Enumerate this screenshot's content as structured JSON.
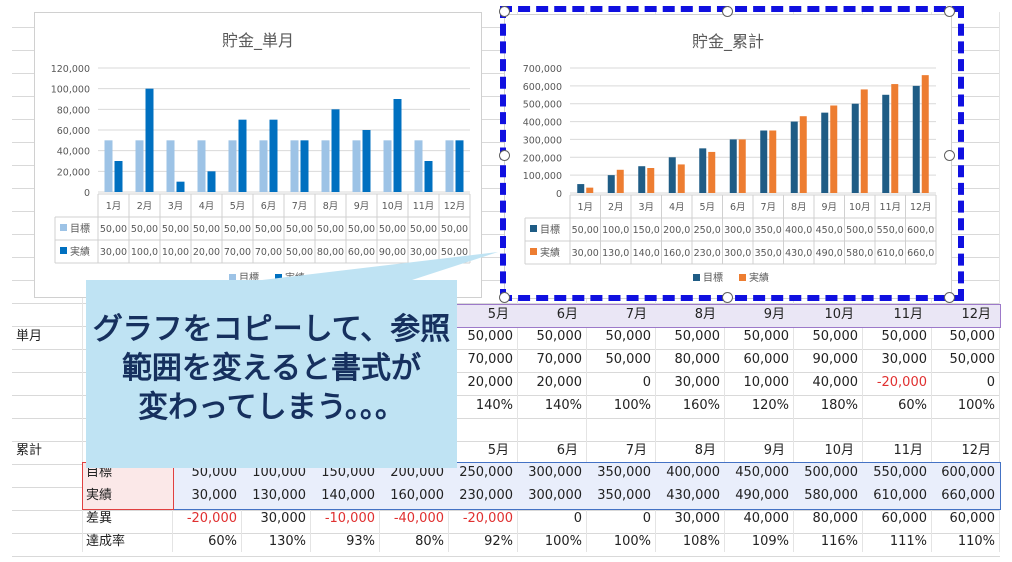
{
  "months": [
    "1月",
    "2月",
    "3月",
    "4月",
    "5月",
    "6月",
    "7月",
    "8月",
    "9月",
    "10月",
    "11月",
    "12月"
  ],
  "sheet": {
    "section_single": "単月",
    "section_cumulative": "累計",
    "single_rows": [
      [
        "",
        "",
        "",
        "",
        "50,000",
        "50,000",
        "50,000",
        "50,000",
        "50,000",
        "50,000",
        "50,000",
        "50,000"
      ],
      [
        "",
        "",
        "",
        "",
        "70,000",
        "70,000",
        "50,000",
        "80,000",
        "60,000",
        "90,000",
        "30,000",
        "50,000"
      ],
      [
        "",
        "",
        "",
        "",
        "20,000",
        "20,000",
        "0",
        "30,000",
        "10,000",
        "40,000",
        "-20,000",
        "0"
      ],
      [
        "",
        "",
        "",
        "",
        "140%",
        "140%",
        "100%",
        "160%",
        "120%",
        "180%",
        "60%",
        "100%"
      ]
    ],
    "cum_labels": [
      "目標",
      "実績",
      "差異",
      "達成率"
    ],
    "cum_rows": [
      [
        "50,000",
        "100,000",
        "150,000",
        "200,000",
        "250,000",
        "300,000",
        "350,000",
        "400,000",
        "450,000",
        "500,000",
        "550,000",
        "600,000"
      ],
      [
        "30,000",
        "130,000",
        "140,000",
        "160,000",
        "230,000",
        "300,000",
        "350,000",
        "430,000",
        "490,000",
        "580,000",
        "610,000",
        "660,000"
      ],
      [
        "-20,000",
        "30,000",
        "-10,000",
        "-40,000",
        "-20,000",
        "0",
        "0",
        "30,000",
        "40,000",
        "80,000",
        "60,000",
        "60,000"
      ],
      [
        "60%",
        "130%",
        "93%",
        "80%",
        "92%",
        "100%",
        "100%",
        "108%",
        "109%",
        "116%",
        "111%",
        "110%"
      ]
    ]
  },
  "callout": {
    "lines": [
      "グラフをコピーして、参照",
      "範囲を変えると書式が",
      "変わってしまう。。。"
    ]
  },
  "colors": {
    "left_target": "#9dc3e6",
    "left_actual": "#0070c0",
    "right_target": "#1f5c85",
    "right_actual": "#ed7d31",
    "selection": "#1010e0",
    "callout_bg": "#bfe3f3",
    "callout_text": "#16305e"
  },
  "chart_data": [
    {
      "type": "bar",
      "title": "貯金_単月",
      "categories": [
        "1月",
        "2月",
        "3月",
        "4月",
        "5月",
        "6月",
        "7月",
        "8月",
        "9月",
        "10月",
        "11月",
        "12月"
      ],
      "ylim": [
        0,
        120000
      ],
      "yticks": [
        "0",
        "20,000",
        "40,000",
        "60,000",
        "80,000",
        "100,000",
        "120,000"
      ],
      "legend_position": "bottom",
      "series": [
        {
          "name": "目標",
          "values": [
            50000,
            50000,
            50000,
            50000,
            50000,
            50000,
            50000,
            50000,
            50000,
            50000,
            50000,
            50000
          ],
          "table": [
            "50,00",
            "50,00",
            "50,00",
            "50,00",
            "50,00",
            "50,00",
            "50,00",
            "50,00",
            "50,00",
            "50,00",
            "50,00",
            "50,00"
          ]
        },
        {
          "name": "実績",
          "values": [
            30000,
            100000,
            10000,
            20000,
            70000,
            70000,
            50000,
            80000,
            60000,
            90000,
            30000,
            50000
          ],
          "table": [
            "30,00",
            "100,0",
            "10,00",
            "20,00",
            "70,00",
            "70,00",
            "50,00",
            "80,00",
            "60,00",
            "90,00",
            "30,00",
            "50,00"
          ]
        }
      ]
    },
    {
      "type": "bar",
      "title": "貯金_累計",
      "categories": [
        "1月",
        "2月",
        "3月",
        "4月",
        "5月",
        "6月",
        "7月",
        "8月",
        "9月",
        "10月",
        "11月",
        "12月"
      ],
      "ylim": [
        0,
        700000
      ],
      "yticks": [
        "0",
        "100,000",
        "200,000",
        "300,000",
        "400,000",
        "500,000",
        "600,000",
        "700,000"
      ],
      "legend_position": "bottom",
      "series": [
        {
          "name": "目標",
          "values": [
            50000,
            100000,
            150000,
            200000,
            250000,
            300000,
            350000,
            400000,
            450000,
            500000,
            550000,
            600000
          ],
          "table": [
            "50,00",
            "100,0",
            "150,0",
            "200,0",
            "250,0",
            "300,0",
            "350,0",
            "400,0",
            "450,0",
            "500,0",
            "550,0",
            "600,0"
          ]
        },
        {
          "name": "実績",
          "values": [
            30000,
            130000,
            140000,
            160000,
            230000,
            300000,
            350000,
            430000,
            490000,
            580000,
            610000,
            660000
          ],
          "table": [
            "30,00",
            "130,0",
            "140,0",
            "160,0",
            "230,0",
            "300,0",
            "350,0",
            "430,0",
            "490,0",
            "580,0",
            "610,0",
            "660,0"
          ]
        }
      ]
    }
  ]
}
